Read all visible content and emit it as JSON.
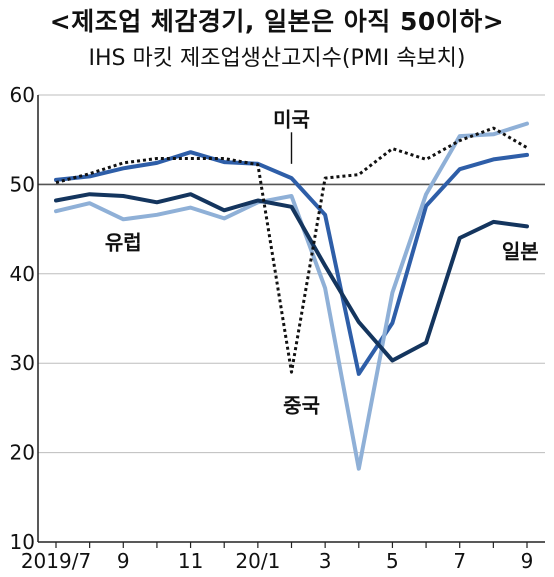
{
  "title": "<제조업 체감경기, 일본은 아직 50이하>",
  "subtitle": "IHS 마킷 제조업생산고지수(PMI 속보치)",
  "chart_data": {
    "type": "line",
    "title": "<제조업 체감경기, 일본은 아직 50이하>",
    "subtitle": "IHS 마킷 제조업생산고지수(PMI 속보치)",
    "x": [
      "2019/7",
      "2019/8",
      "2019/9",
      "2019/10",
      "2019/11",
      "2019/12",
      "2020/1",
      "2020/2",
      "2020/3",
      "2020/4",
      "2020/5",
      "2020/6",
      "2020/7",
      "2020/8",
      "2020/9"
    ],
    "x_tick_labels": [
      "2019/7",
      "9",
      "11",
      "20/1",
      "3",
      "5",
      "7",
      "9"
    ],
    "y_tick_labels": [
      "10",
      "20",
      "30",
      "40",
      "50",
      "60"
    ],
    "ylim": [
      10,
      60
    ],
    "reference_line": 50,
    "grid": "horizontal",
    "series": [
      {
        "name": "미국",
        "color": "#2e5ea8",
        "style": "solid",
        "values": [
          50.5,
          50.9,
          51.8,
          52.4,
          53.6,
          52.5,
          52.3,
          50.7,
          46.6,
          28.8,
          34.5,
          47.6,
          51.7,
          52.8,
          53.3
        ]
      },
      {
        "name": "유럽",
        "color": "#8fb0d7",
        "style": "solid",
        "values": [
          47.0,
          47.9,
          46.1,
          46.6,
          47.4,
          46.2,
          48.0,
          48.7,
          38.4,
          18.2,
          37.9,
          48.9,
          55.4,
          55.6,
          56.8
        ]
      },
      {
        "name": "일본",
        "color": "#14355e",
        "style": "solid",
        "values": [
          48.2,
          48.9,
          48.7,
          48.0,
          48.9,
          47.1,
          48.2,
          47.5,
          40.9,
          34.6,
          30.3,
          32.3,
          44.0,
          45.8,
          45.3
        ]
      },
      {
        "name": "중국",
        "color": "#111111",
        "style": "dotted",
        "values": [
          50.2,
          51.2,
          52.4,
          52.9,
          52.9,
          52.9,
          52.2,
          29.0,
          50.7,
          51.1,
          54.0,
          52.8,
          54.9,
          56.3,
          54.1
        ]
      }
    ]
  }
}
